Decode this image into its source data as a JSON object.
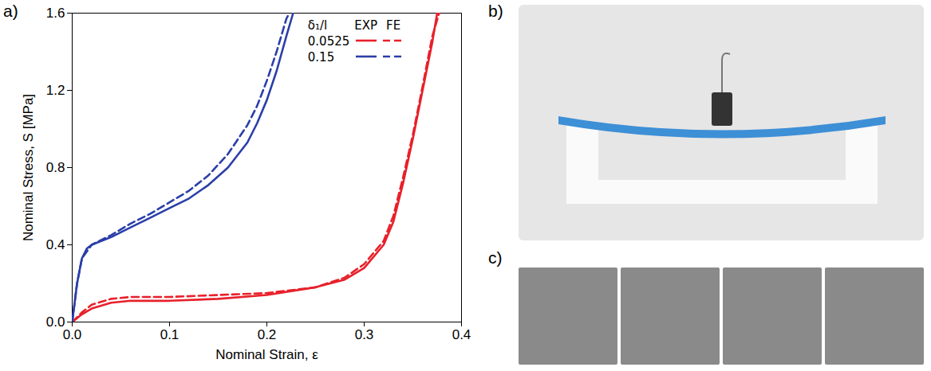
{
  "chart_data": {
    "type": "line",
    "panel_label": "a)",
    "x_label": "Nominal Strain, ε",
    "y_label": "Nominal Stress, S [MPa]",
    "xlim": [
      0,
      0.4
    ],
    "xticks": [
      {
        "value": 0,
        "label": "0.0"
      },
      {
        "value": 0.1,
        "label": "0.1"
      },
      {
        "value": 0.2,
        "label": "0.2"
      },
      {
        "value": 0.3,
        "label": "0.3"
      },
      {
        "value": 0.4,
        "label": "0.4"
      }
    ],
    "ylim": [
      0,
      1.6
    ],
    "yticks": [
      {
        "value": 0,
        "label": "0.0"
      },
      {
        "value": 0.4,
        "label": "0.4"
      },
      {
        "value": 0.8,
        "label": "0.8"
      },
      {
        "value": 1.2,
        "label": "1.2"
      },
      {
        "value": 1.6,
        "label": "1.6"
      }
    ],
    "grid": false,
    "legend": "top-right",
    "legend_title": "δ₁/l",
    "legend_columns": [
      "EXP",
      "FE"
    ],
    "series": [
      {
        "name": "0.0525",
        "method": "EXP",
        "color": "#e8202a",
        "line_style": "solid",
        "x": [
          0,
          0.01,
          0.02,
          0.04,
          0.06,
          0.1,
          0.15,
          0.2,
          0.25,
          0.28,
          0.3,
          0.32,
          0.33,
          0.34,
          0.35,
          0.36,
          0.37,
          0.375
        ],
        "values": [
          0,
          0.04,
          0.07,
          0.1,
          0.11,
          0.11,
          0.12,
          0.14,
          0.18,
          0.22,
          0.28,
          0.4,
          0.52,
          0.72,
          0.95,
          1.2,
          1.45,
          1.6
        ]
      },
      {
        "name": "0.0525",
        "method": "FE",
        "color": "#e8202a",
        "line_style": "dashed",
        "x": [
          0,
          0.01,
          0.02,
          0.04,
          0.06,
          0.1,
          0.15,
          0.2,
          0.25,
          0.28,
          0.3,
          0.32,
          0.33,
          0.34,
          0.35,
          0.36,
          0.37,
          0.377
        ],
        "values": [
          0,
          0.05,
          0.09,
          0.12,
          0.13,
          0.13,
          0.14,
          0.15,
          0.18,
          0.23,
          0.3,
          0.42,
          0.55,
          0.75,
          0.97,
          1.22,
          1.48,
          1.6
        ]
      },
      {
        "name": "0.15",
        "method": "EXP",
        "color": "#2b3fa8",
        "line_style": "solid",
        "x": [
          0,
          0.005,
          0.01,
          0.015,
          0.02,
          0.04,
          0.06,
          0.08,
          0.1,
          0.12,
          0.14,
          0.16,
          0.18,
          0.19,
          0.2,
          0.21,
          0.22,
          0.227
        ],
        "values": [
          0,
          0.2,
          0.33,
          0.38,
          0.4,
          0.44,
          0.49,
          0.54,
          0.59,
          0.64,
          0.71,
          0.8,
          0.93,
          1.03,
          1.15,
          1.3,
          1.48,
          1.6
        ]
      },
      {
        "name": "0.15",
        "method": "FE",
        "color": "#2b3fa8",
        "line_style": "dashed",
        "x": [
          0,
          0.005,
          0.01,
          0.02,
          0.04,
          0.06,
          0.08,
          0.1,
          0.12,
          0.14,
          0.16,
          0.18,
          0.19,
          0.2,
          0.21,
          0.22,
          0.223
        ],
        "values": [
          0,
          0.2,
          0.33,
          0.4,
          0.45,
          0.51,
          0.56,
          0.62,
          0.68,
          0.76,
          0.87,
          1.02,
          1.12,
          1.25,
          1.4,
          1.57,
          1.6
        ]
      }
    ]
  },
  "photos": [
    {
      "label": "b)"
    },
    {
      "label": "c)"
    }
  ]
}
